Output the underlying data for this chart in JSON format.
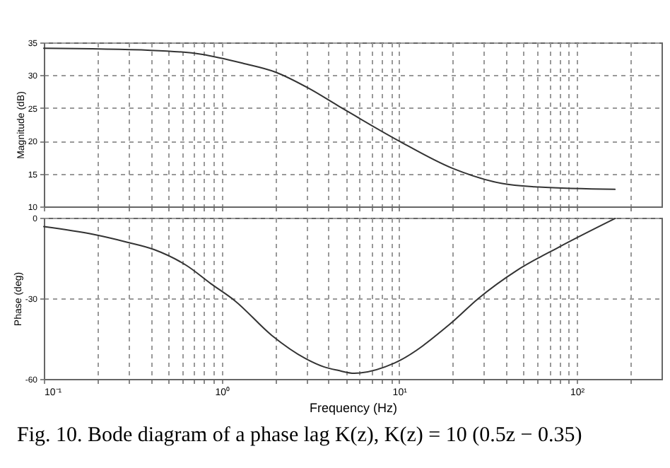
{
  "chart_data": [
    {
      "type": "line",
      "ylabel": "Magnitude (dB)",
      "log": "x",
      "grid": true,
      "tick_labels": "y",
      "marker": "none",
      "line_style": "solid",
      "xlim": [
        0.1,
        300
      ],
      "ylim": [
        10,
        35
      ],
      "yticks": [
        10,
        15,
        20,
        25,
        30,
        35
      ],
      "xticks": [
        {
          "value": 0.1,
          "label": null
        },
        {
          "value": 0.2,
          "label": null
        },
        {
          "value": 0.3,
          "label": null
        },
        {
          "value": 0.4,
          "label": null
        },
        {
          "value": 0.5,
          "label": null
        },
        {
          "value": 0.6,
          "label": null
        },
        {
          "value": 0.7,
          "label": null
        },
        {
          "value": 0.8,
          "label": null
        },
        {
          "value": 0.9,
          "label": null
        },
        {
          "value": 1,
          "label": null
        },
        {
          "value": 2,
          "label": null
        },
        {
          "value": 3,
          "label": null
        },
        {
          "value": 4,
          "label": null
        },
        {
          "value": 5,
          "label": null
        },
        {
          "value": 6,
          "label": null
        },
        {
          "value": 7,
          "label": null
        },
        {
          "value": 8,
          "label": null
        },
        {
          "value": 9,
          "label": null
        },
        {
          "value": 10,
          "label": null
        },
        {
          "value": 20,
          "label": null
        },
        {
          "value": 30,
          "label": null
        },
        {
          "value": 40,
          "label": null
        },
        {
          "value": 50,
          "label": null
        },
        {
          "value": 60,
          "label": null
        },
        {
          "value": 70,
          "label": null
        },
        {
          "value": 80,
          "label": null
        },
        {
          "value": 90,
          "label": null
        },
        {
          "value": 100,
          "label": null
        },
        {
          "value": 200,
          "label": null
        }
      ],
      "series": [
        {
          "color": "#333333",
          "x": [
            0.1,
            0.4,
            0.77,
            1.33,
            2.0,
            3.1,
            4.5,
            9.8,
            20,
            38,
            58,
            164
          ],
          "values": [
            34.1,
            33.8,
            33.2,
            31.8,
            30.5,
            28.0,
            25.4,
            20.1,
            15.8,
            13.5,
            13.0,
            12.6
          ]
        }
      ]
    },
    {
      "type": "line",
      "xlabel": "Frequency (Hz)",
      "ylabel": "Phase (deg)",
      "log": "x",
      "grid": true,
      "marker": "none",
      "line_style": "solid",
      "xlim": [
        0.1,
        300
      ],
      "ylim": [
        -60,
        0
      ],
      "yticks": [
        -60,
        -30,
        0
      ],
      "xticks": [
        {
          "value": 0.1,
          "label": "10⁻¹"
        },
        {
          "value": 0.2,
          "label": null
        },
        {
          "value": 0.3,
          "label": null
        },
        {
          "value": 0.4,
          "label": null
        },
        {
          "value": 0.5,
          "label": null
        },
        {
          "value": 0.6,
          "label": null
        },
        {
          "value": 0.7,
          "label": null
        },
        {
          "value": 0.8,
          "label": null
        },
        {
          "value": 0.9,
          "label": null
        },
        {
          "value": 1,
          "label": "10⁰"
        },
        {
          "value": 2,
          "label": null
        },
        {
          "value": 3,
          "label": null
        },
        {
          "value": 4,
          "label": null
        },
        {
          "value": 5,
          "label": null
        },
        {
          "value": 6,
          "label": null
        },
        {
          "value": 7,
          "label": null
        },
        {
          "value": 8,
          "label": null
        },
        {
          "value": 9,
          "label": null
        },
        {
          "value": 10,
          "label": "10¹"
        },
        {
          "value": 20,
          "label": null
        },
        {
          "value": 30,
          "label": null
        },
        {
          "value": 40,
          "label": null
        },
        {
          "value": 50,
          "label": null
        },
        {
          "value": 60,
          "label": null
        },
        {
          "value": 70,
          "label": null
        },
        {
          "value": 80,
          "label": null
        },
        {
          "value": 90,
          "label": null
        },
        {
          "value": 100,
          "label": "10²"
        },
        {
          "value": 200,
          "label": null
        }
      ],
      "series": [
        {
          "color": "#333333",
          "x": [
            0.1,
            0.19,
            0.29,
            0.42,
            0.64,
            0.87,
            1.19,
            1.92,
            2.97,
            3.77,
            4.52,
            5.6,
            9.4,
            19.4,
            28,
            45.8,
            79,
            164
          ],
          "values": [
            -3.3,
            -6.2,
            -9.0,
            -11.9,
            -17.9,
            -24.5,
            -30.9,
            -43.8,
            -52.4,
            -55.5,
            -56.8,
            -57.9,
            -54.1,
            -39.5,
            -30,
            -19.7,
            -11.0,
            -0.3
          ]
        }
      ],
      "annotations": [
        "Fig. 10.  Bode diagram of a phase lag K(z),  K(z) = 10 (0.5z − 0.35)"
      ]
    }
  ]
}
